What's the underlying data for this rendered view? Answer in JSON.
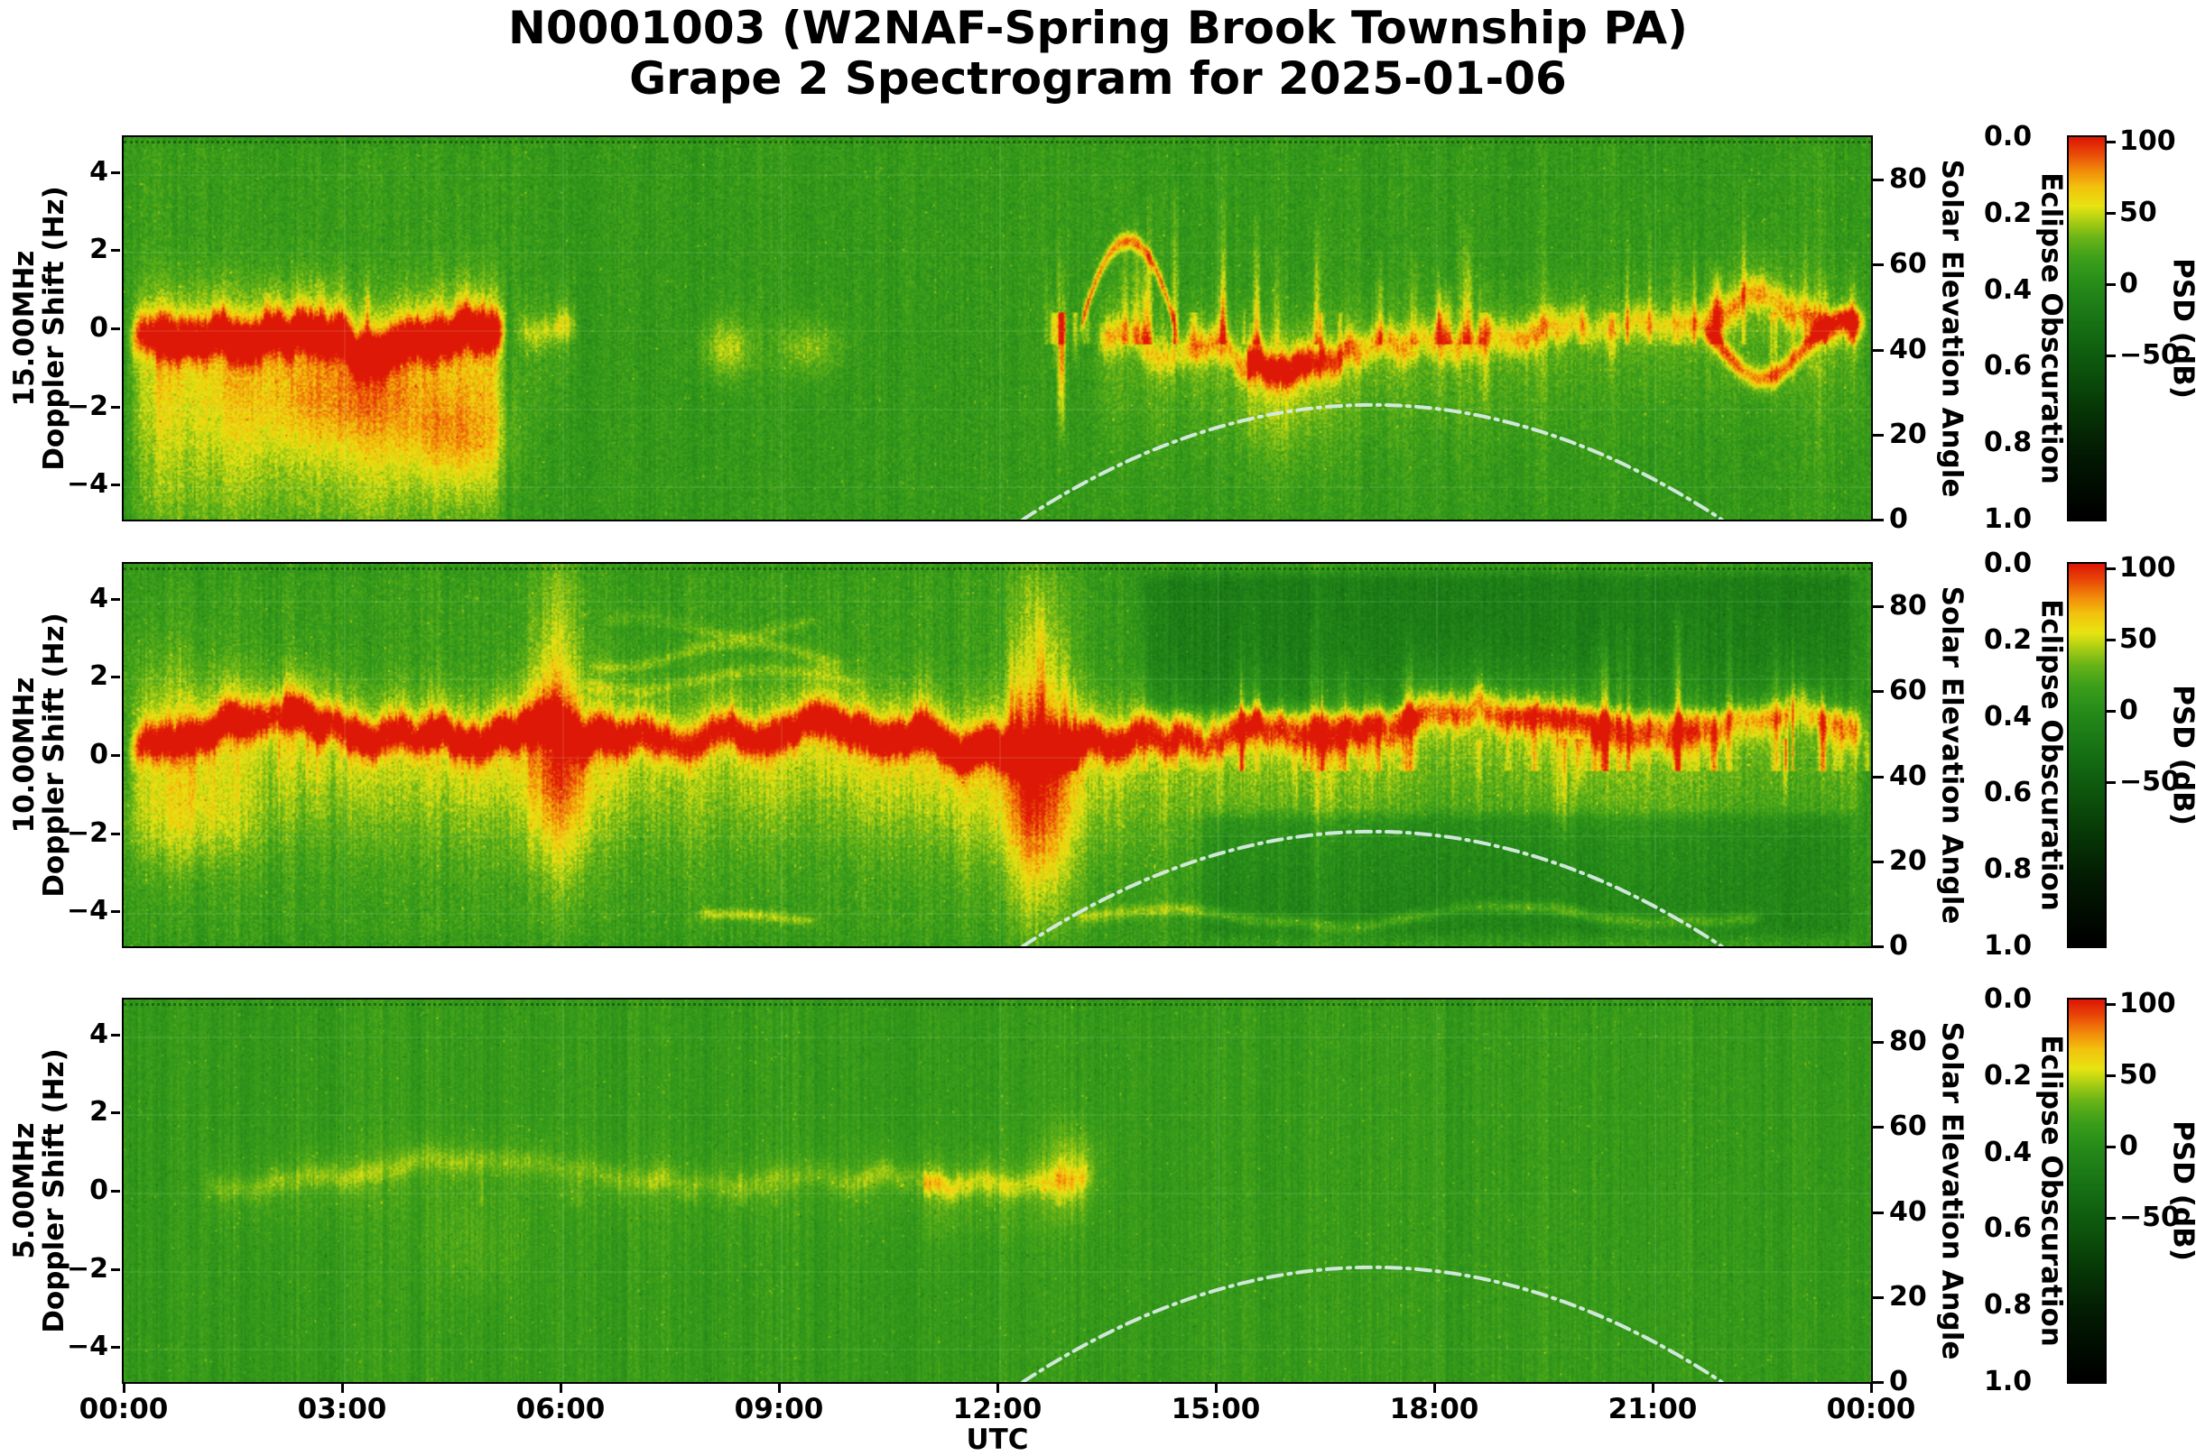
{
  "chart_data": {
    "type": "heatmap",
    "title_line1": "N0001003 (W2NAF-Spring Brook Township PA)",
    "title_line2": "Grape 2 Spectrogram for 2025-01-06",
    "xlabel": "UTC",
    "x_range_hours": [
      0,
      24
    ],
    "x_ticks": [
      {
        "h": 0,
        "label": "00:00"
      },
      {
        "h": 3,
        "label": "03:00"
      },
      {
        "h": 6,
        "label": "06:00"
      },
      {
        "h": 9,
        "label": "09:00"
      },
      {
        "h": 12,
        "label": "12:00"
      },
      {
        "h": 15,
        "label": "15:00"
      },
      {
        "h": 18,
        "label": "18:00"
      },
      {
        "h": 21,
        "label": "21:00"
      },
      {
        "h": 24,
        "label": "00:00"
      }
    ],
    "y_axis": {
      "label": "Doppler Shift (Hz)",
      "ylim": [
        -4.9,
        4.9
      ],
      "ticks": [
        {
          "v": 4,
          "label": "4"
        },
        {
          "v": 2,
          "label": "2"
        },
        {
          "v": 0,
          "label": "0"
        },
        {
          "v": -2,
          "label": "−2"
        },
        {
          "v": -4,
          "label": "−4"
        }
      ]
    },
    "solar_axis": {
      "label": "Solar Elevation Angle",
      "lim": [
        0,
        90
      ],
      "ticks": [
        {
          "v": 80,
          "label": "80"
        },
        {
          "v": 60,
          "label": "60"
        },
        {
          "v": 40,
          "label": "40"
        },
        {
          "v": 20,
          "label": "20"
        },
        {
          "v": 0,
          "label": "0"
        }
      ]
    },
    "eclipse_axis": {
      "label": "Eclipse Obscuration",
      "lim": [
        0,
        1
      ],
      "inverted": true,
      "ticks": [
        {
          "v": 0,
          "label": "0.0"
        },
        {
          "v": 0.2,
          "label": "0.2"
        },
        {
          "v": 0.4,
          "label": "0.4"
        },
        {
          "v": 0.6,
          "label": "0.6"
        },
        {
          "v": 0.8,
          "label": "0.8"
        },
        {
          "v": 1,
          "label": "1.0"
        }
      ]
    },
    "colorbar": {
      "label": "PSD (dB)",
      "vmax": 103,
      "vmin": -165,
      "ticks": [
        {
          "v": 100,
          "label": "100"
        },
        {
          "v": 50,
          "label": "50"
        },
        {
          "v": 0,
          "label": "0"
        },
        {
          "v": -50,
          "label": "−50"
        }
      ],
      "colormap_hint": [
        "#e01806",
        "#f08a0c",
        "#e8e412",
        "#68a01a",
        "#2e9620",
        "#0a4a0a",
        "#000000"
      ]
    },
    "solar_elevation_curve": {
      "style": "dash-dot",
      "color": "#d8ece4",
      "sunrise_utc_h": 12.35,
      "solar_noon_utc_h": 17.15,
      "sunset_utc_h": 21.95,
      "max_elevation_deg": 27,
      "samples": {
        "utc_h": [
          12.35,
          13,
          14,
          15,
          16,
          17,
          17.15,
          18,
          19,
          20,
          21,
          21.95
        ],
        "elevation_deg": [
          0,
          6.9,
          15.4,
          21.4,
          25.2,
          27,
          27,
          26.2,
          23.2,
          18,
          10.6,
          0
        ]
      }
    },
    "panels": [
      {
        "freq_label": "15.00MHz",
        "axis_label": "Doppler Shift (Hz)",
        "seed": 11,
        "base_psd_db": 12,
        "noise_db": 10,
        "col_noise_db": 5,
        "features": [
          {
            "type": "hband",
            "t0": 0,
            "t1": 5.3,
            "f0": -0.15,
            "sigma": 0.35,
            "amp": 68,
            "walk": 0.5,
            "tail": 0.5,
            "spread_below": 3.6
          },
          {
            "type": "blob",
            "t": 3.1,
            "f": -1.9,
            "st": 1.0,
            "sf": 0.9,
            "amp": 24
          },
          {
            "type": "blob",
            "t": 4.6,
            "f": -2.9,
            "st": 0.5,
            "sf": 0.8,
            "amp": 26
          },
          {
            "type": "hband",
            "t0": 5.3,
            "t1": 6.3,
            "f0": -0.3,
            "sigma": 0.3,
            "amp": 22,
            "walk": 0.3,
            "tail": 0.4,
            "spread_below": 1.5
          },
          {
            "type": "vspikes",
            "t0": 0.8,
            "t1": 5.0,
            "density": 2.2,
            "fmin": 0.8,
            "fmax": 2.3,
            "amp": 20,
            "rs": 1
          },
          {
            "type": "blob",
            "t": 8.3,
            "f": -0.5,
            "st": 0.25,
            "sf": 0.55,
            "amp": 34
          },
          {
            "type": "blob",
            "t": 9.4,
            "f": -0.5,
            "st": 0.3,
            "sf": 0.5,
            "amp": 26
          },
          {
            "type": "vspikes",
            "t0": 12.65,
            "t1": 13.25,
            "density": 10,
            "fmin": 0.8,
            "fmax": 3.2,
            "amp": 34,
            "rs": 2
          },
          {
            "type": "vspikes",
            "t0": 12.65,
            "t1": 13.25,
            "density": 8,
            "fmin": -0.8,
            "fmax": -3.4,
            "amp": 30,
            "rs": 3
          },
          {
            "type": "arc",
            "tm": 13.8,
            "w": 0.62,
            "f0": 0.25,
            "h": 2.0,
            "sigma": 0.16,
            "amp": 66
          },
          {
            "type": "hband",
            "t0": 13.3,
            "t1": 24,
            "f0": 0.1,
            "sigma": 0.3,
            "amp": 55,
            "walk": 0.45,
            "tail": 0.45,
            "spread_below": 2.0,
            "env": [
              [
                13.3,
                1.0
              ],
              [
                15,
                1.15
              ],
              [
                16.5,
                1.0
              ],
              [
                18,
                0.95
              ],
              [
                20,
                0.95
              ],
              [
                21.5,
                1.1
              ],
              [
                23,
                1.2
              ],
              [
                24,
                1.25
              ]
            ]
          },
          {
            "type": "wavyline",
            "t0": 21.6,
            "t1": 24,
            "f0": -0.5,
            "ampF": 0.75,
            "freq": 2.8,
            "amp": 45,
            "sigma": 0.2,
            "rs": 4
          },
          {
            "type": "vspikes",
            "t0": 13.5,
            "t1": 24,
            "density": 3.0,
            "fmin": 0.8,
            "fmax": 4.6,
            "amp": 34,
            "rs": 5
          },
          {
            "type": "vspikes",
            "t0": 13.5,
            "t1": 24,
            "density": 1.2,
            "fmin": -0.8,
            "fmax": -2.6,
            "amp": 24,
            "rs": 6
          },
          {
            "type": "vline",
            "t": 18.35,
            "w": 0.035,
            "amp": 20
          },
          {
            "type": "vline",
            "t": 19.5,
            "w": 0.03,
            "amp": 15
          },
          {
            "type": "vline",
            "t": 23.3,
            "w": 0.03,
            "amp": 14
          },
          {
            "type": "region",
            "t0": 0,
            "t1": 5.5,
            "f0": -4.9,
            "f1": 4.9,
            "amp": 3
          }
        ]
      },
      {
        "freq_label": "10.00MHz",
        "axis_label": "Doppler Shift (Hz)",
        "seed": 22,
        "base_psd_db": 12,
        "noise_db": 10,
        "col_noise_db": 6,
        "features": [
          {
            "type": "hband",
            "t0": 0,
            "t1": 24,
            "f0": 0.0,
            "sigma": 0.32,
            "amp": 58,
            "walk": 0.45,
            "tail": 0.5,
            "spread_below": 2.2,
            "env": [
              [
                0,
                1.12
              ],
              [
                1.5,
                1.15
              ],
              [
                3,
                0.95
              ],
              [
                5,
                1.0
              ],
              [
                6.5,
                1.05
              ],
              [
                8,
                0.92
              ],
              [
                9.5,
                0.95
              ],
              [
                10.8,
                1.1
              ],
              [
                12.3,
                1.18
              ],
              [
                13.2,
                1.05
              ],
              [
                14.5,
                0.85
              ],
              [
                16,
                0.78
              ],
              [
                18,
                0.75
              ],
              [
                20,
                0.78
              ],
              [
                22,
                0.8
              ],
              [
                24,
                0.85
              ]
            ]
          },
          {
            "type": "blob",
            "t": 0.9,
            "f": -1.7,
            "st": 0.8,
            "sf": 0.9,
            "amp": 22
          },
          {
            "type": "blob",
            "t": 0.6,
            "f": 1.7,
            "st": 0.5,
            "sf": 1.1,
            "amp": 16
          },
          {
            "type": "blob",
            "t": 5.95,
            "f": 1.6,
            "st": 0.28,
            "sf": 2.4,
            "amp": 36
          },
          {
            "type": "blob",
            "t": 5.95,
            "f": -1.4,
            "st": 0.33,
            "sf": 1.6,
            "amp": 26
          },
          {
            "type": "wavyline",
            "t0": 6.3,
            "t1": 10.0,
            "f0": 2.55,
            "ampF": 0.3,
            "freq": 1.8,
            "amp": 14,
            "sigma": 0.12,
            "rs": 7
          },
          {
            "type": "wavyline",
            "t0": 6.5,
            "t1": 9.6,
            "f0": 3.3,
            "ampF": 0.25,
            "freq": 2.2,
            "amp": 11,
            "sigma": 0.11,
            "rs": 8
          },
          {
            "type": "wavyline",
            "t0": 6.2,
            "t1": 10.2,
            "f0": 1.9,
            "ampF": 0.3,
            "freq": 1.5,
            "amp": 12,
            "sigma": 0.12,
            "rs": 9
          },
          {
            "type": "blob",
            "t": 12.55,
            "f": 1.2,
            "st": 0.3,
            "sf": 2.6,
            "amp": 40
          },
          {
            "type": "blob",
            "t": 12.6,
            "f": -2.0,
            "st": 0.35,
            "sf": 1.7,
            "amp": 30
          },
          {
            "type": "vspikes",
            "t0": 12.1,
            "t1": 13.5,
            "density": 6,
            "fmin": 1.5,
            "fmax": 4.7,
            "amp": 34,
            "rs": 10
          },
          {
            "type": "region",
            "t0": 13.8,
            "t1": 24,
            "f0": 0.9,
            "f1": 4.9,
            "amp": -26
          },
          {
            "type": "region",
            "t0": 14.6,
            "t1": 24,
            "f0": -4.9,
            "f1": -1.3,
            "amp": -18
          },
          {
            "type": "vspikes",
            "t0": 14,
            "t1": 24,
            "density": 4,
            "fmin": 1.2,
            "fmax": 4.6,
            "amp": 32,
            "rs": 11
          },
          {
            "type": "vspikes",
            "t0": 14,
            "t1": 24,
            "density": 1.5,
            "fmin": -1.0,
            "fmax": -3.0,
            "amp": 22,
            "rs": 12
          },
          {
            "type": "vline",
            "t": 16.4,
            "w": 0.04,
            "amp": 24
          },
          {
            "type": "vline",
            "t": 19.9,
            "w": 0.03,
            "amp": 15
          },
          {
            "type": "vline",
            "t": 22.2,
            "w": 0.03,
            "amp": 13
          },
          {
            "type": "wavyline",
            "t0": 13.0,
            "t1": 22.6,
            "f0": -4.15,
            "ampF": 0.22,
            "freq": 1.3,
            "amp": 20,
            "sigma": 0.12,
            "rs": 13
          },
          {
            "type": "wavyline",
            "t0": 7.8,
            "t1": 9.6,
            "f0": -4.2,
            "ampF": 0.08,
            "freq": 2.0,
            "amp": 26,
            "sigma": 0.1,
            "rs": 14
          },
          {
            "type": "vspikes",
            "t0": 0.4,
            "t1": 3.0,
            "density": 2,
            "fmin": -0.9,
            "fmax": -2.8,
            "amp": 18,
            "rs": 15
          },
          {
            "type": "region",
            "t0": 0,
            "t1": 13.5,
            "f0": -4.9,
            "f1": 4.9,
            "amp": 3
          }
        ]
      },
      {
        "freq_label": "5.00MHz",
        "axis_label": "Doppler Shift (Hz)",
        "seed": 33,
        "base_psd_db": 13,
        "noise_db": 7,
        "col_noise_db": 6,
        "features": [
          {
            "type": "hband",
            "t0": 1.0,
            "t1": 13.4,
            "f0": -0.05,
            "sigma": 0.22,
            "amp": 26,
            "walk": 0.3,
            "tail": 0.45,
            "spread_below": 1.6,
            "env": [
              [
                1,
                0.5
              ],
              [
                2,
                0.85
              ],
              [
                3.5,
                0.95
              ],
              [
                5,
                0.8
              ],
              [
                6.5,
                0.95
              ],
              [
                8,
                0.9
              ],
              [
                9.5,
                1.0
              ],
              [
                11,
                1.05
              ],
              [
                12.2,
                1.2
              ],
              [
                13,
                1.35
              ],
              [
                13.4,
                1.1
              ]
            ]
          },
          {
            "type": "blob",
            "t": 13.0,
            "f": 0.55,
            "st": 0.28,
            "sf": 0.75,
            "amp": 26
          },
          {
            "type": "blob",
            "t": 4.8,
            "f": -1.4,
            "st": 0.5,
            "sf": 0.9,
            "amp": 10
          },
          {
            "type": "vspikes",
            "t0": 4,
            "t1": 13,
            "density": 1.5,
            "fmin": 0.5,
            "fmax": 1.3,
            "amp": 10,
            "rs": 16
          },
          {
            "type": "vline",
            "t": 13.15,
            "w": 0.03,
            "amp": 10
          }
        ]
      }
    ]
  }
}
